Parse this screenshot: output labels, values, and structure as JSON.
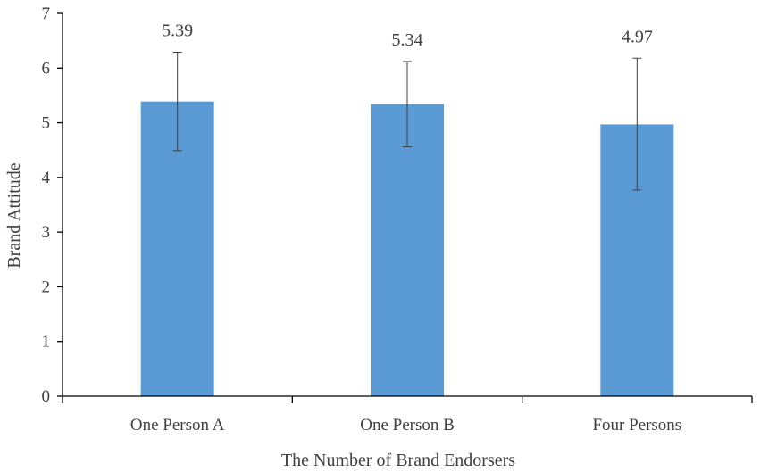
{
  "chart_data": {
    "type": "bar",
    "categories": [
      "One Person A",
      "One Person B",
      "Four Persons"
    ],
    "values": [
      5.39,
      5.34,
      4.97
    ],
    "data_labels": [
      "5.39",
      "5.34",
      "4.97"
    ],
    "error_bars": [
      {
        "low": 4.49,
        "high": 6.29
      },
      {
        "low": 4.56,
        "high": 6.12
      },
      {
        "low": 3.77,
        "high": 6.18
      }
    ],
    "title": "",
    "xlabel": "The Number of Brand Endorsers",
    "ylabel": "Brand Attitude",
    "ylim": [
      0,
      7
    ],
    "yticks": [
      "0",
      "1",
      "2",
      "3",
      "4",
      "5",
      "6",
      "7"
    ],
    "grid": false,
    "bar_color": "#5b9bd5"
  }
}
